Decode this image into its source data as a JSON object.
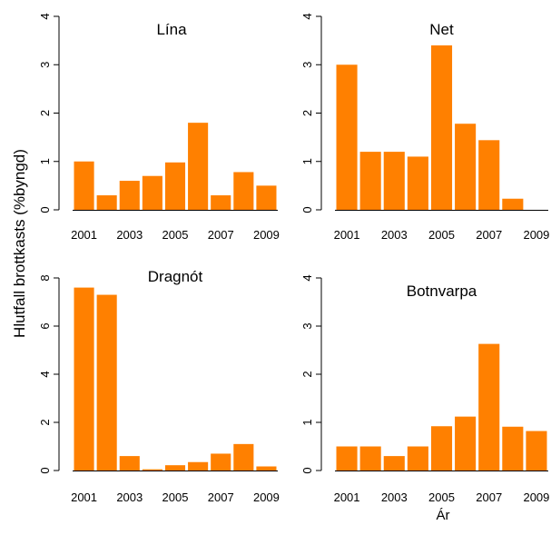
{
  "ylabel": "Hlutfall brottkasts (%byngd)",
  "xlabel": "Ár",
  "colors": {
    "bar": "#FF8000"
  },
  "chart_data": [
    {
      "type": "bar",
      "title": "Lína",
      "categories": [
        "2001",
        "2002",
        "2003",
        "2004",
        "2005",
        "2006",
        "2007",
        "2008",
        "2009"
      ],
      "values": [
        1.0,
        0.3,
        0.6,
        0.7,
        0.98,
        1.8,
        0.3,
        0.78,
        0.5
      ],
      "xtick_labels": [
        "2001",
        "2003",
        "2005",
        "2007",
        "2009"
      ],
      "yticks": [
        "0",
        "1",
        "2",
        "3",
        "4"
      ],
      "ylim": [
        0,
        4
      ]
    },
    {
      "type": "bar",
      "title": "Net",
      "categories": [
        "2001",
        "2002",
        "2003",
        "2004",
        "2005",
        "2006",
        "2007",
        "2008",
        "2009"
      ],
      "values": [
        3.0,
        1.2,
        1.2,
        1.1,
        3.4,
        1.78,
        1.44,
        0.23,
        0
      ],
      "xtick_labels": [
        "2001",
        "2003",
        "2005",
        "2007",
        "2009"
      ],
      "yticks": [
        "0",
        "1",
        "2",
        "3",
        "4"
      ],
      "ylim": [
        0,
        4
      ]
    },
    {
      "type": "bar",
      "title": "Dragnót",
      "categories": [
        "2001",
        "2002",
        "2003",
        "2004",
        "2005",
        "2006",
        "2007",
        "2008",
        "2009"
      ],
      "values": [
        7.6,
        7.3,
        0.6,
        0.05,
        0.22,
        0.35,
        0.7,
        1.1,
        0.17
      ],
      "xtick_labels": [
        "2001",
        "2003",
        "2005",
        "2007",
        "2009"
      ],
      "yticks": [
        "0",
        "2",
        "4",
        "6",
        "8"
      ],
      "ylim": [
        0,
        8
      ]
    },
    {
      "type": "bar",
      "title": "Botnvarpa",
      "categories": [
        "2001",
        "2002",
        "2003",
        "2004",
        "2005",
        "2006",
        "2007",
        "2008",
        "2009"
      ],
      "values": [
        0.5,
        0.5,
        0.3,
        0.5,
        0.92,
        1.12,
        2.63,
        0.91,
        0.82
      ],
      "xtick_labels": [
        "2001",
        "2003",
        "2005",
        "2007",
        "2009"
      ],
      "yticks": [
        "0",
        "1",
        "2",
        "3",
        "4"
      ],
      "ylim": [
        0,
        4
      ]
    }
  ]
}
